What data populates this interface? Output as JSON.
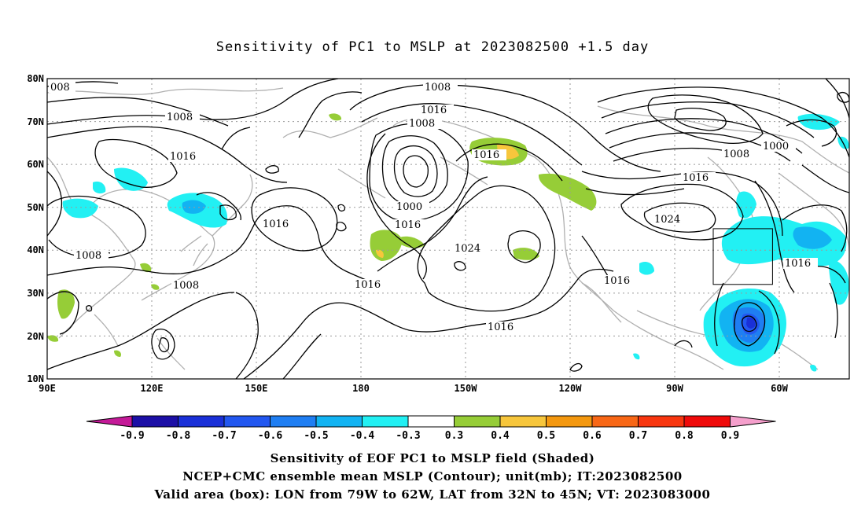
{
  "title": "Sensitivity of PC1 to MSLP at 2023082500 +1.5 day",
  "map": {
    "lon_labels": [
      "90E",
      "120E",
      "150E",
      "180",
      "150W",
      "120W",
      "90W",
      "60W"
    ],
    "lat_labels": [
      "80N",
      "70N",
      "60N",
      "50N",
      "40N",
      "30N",
      "20N",
      "10N"
    ],
    "lon_range": [
      "90E",
      "30W"
    ],
    "lat_range": [
      "10N",
      "80N"
    ],
    "grid": "dotted",
    "valid_box": {
      "lon": [
        "79W",
        "62W"
      ],
      "lat": [
        "32N",
        "45N"
      ]
    },
    "contour_labels": [
      "008",
      "1008",
      "1016",
      "1016",
      "1008",
      "1016",
      "1016",
      "1000",
      "1008",
      "1016",
      "1024",
      "1016",
      "1000",
      "1008",
      "1016",
      "1024",
      "1016",
      "1016",
      "1008",
      "1008"
    ]
  },
  "colorbar": {
    "labels": [
      "-0.9",
      "-0.8",
      "-0.7",
      "-0.6",
      "-0.5",
      "-0.4",
      "-0.3",
      "0.3",
      "0.4",
      "0.5",
      "0.6",
      "0.7",
      "0.8",
      "0.9"
    ],
    "colors": [
      "#1c0fa6",
      "#1a30d8",
      "#2257f0",
      "#1f7ef2",
      "#12b3f2",
      "#22f0f3",
      "#ffffff",
      "#96cd37",
      "#f7c63c",
      "#f4980f",
      "#f86716",
      "#f8360f",
      "#ef0a0a"
    ],
    "low_end_color": "#c41a98",
    "high_end_color": "#f59fcc"
  },
  "footer": {
    "line1": "Sensitivity of EOF PC1 to MSLP field (Shaded)",
    "line2": "NCEP+CMC ensemble mean MSLP (Contour); unit(mb); IT:2023082500",
    "line3": "Valid area (box): LON from 79W to 62W, LAT from 32N to 45N; VT: 2023083000"
  }
}
